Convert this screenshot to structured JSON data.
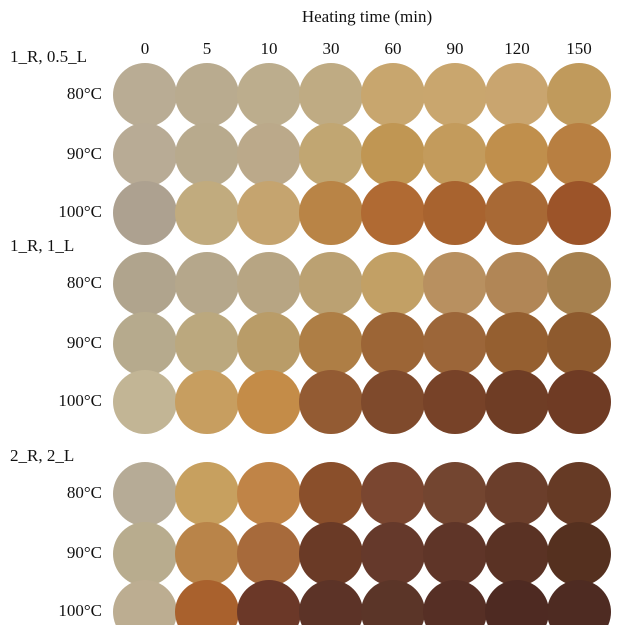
{
  "title": "Heating time (min)",
  "columns": [
    "0",
    "5",
    "10",
    "30",
    "60",
    "90",
    "120",
    "150"
  ],
  "groups": [
    {
      "label": "1_R, 0.5_L",
      "rows": [
        {
          "label": "80°C",
          "colors": [
            "#b9ac94",
            "#b9ab8f",
            "#bcad8d",
            "#bfab83",
            "#c8a66e",
            "#c9a66e",
            "#c9a56f",
            "#c09a5c"
          ]
        },
        {
          "label": "90°C",
          "colors": [
            "#b8ab95",
            "#b8aa8d",
            "#bba98a",
            "#c1a672",
            "#c09653",
            "#c39b5c",
            "#c08f4c",
            "#b87f41"
          ]
        },
        {
          "label": "100°C",
          "colors": [
            "#ada190",
            "#c1ab7e",
            "#c5a46f",
            "#b98446",
            "#b06a33",
            "#a8632f",
            "#a86935",
            "#9c5429"
          ]
        }
      ]
    },
    {
      "label": "1_R, 1_L",
      "rows": [
        {
          "label": "80°C",
          "colors": [
            "#b0a48d",
            "#b5a78b",
            "#b7a583",
            "#bba172",
            "#c2a065",
            "#b89060",
            "#b18656",
            "#a6804e"
          ]
        },
        {
          "label": "90°C",
          "colors": [
            "#b6aa8d",
            "#bba87e",
            "#b99c68",
            "#ae7e45",
            "#9c6536",
            "#9c6639",
            "#955f30",
            "#8e5a2e"
          ]
        },
        {
          "label": "100°C",
          "colors": [
            "#c2b595",
            "#c79e60",
            "#c48c48",
            "#935b33",
            "#7f4a2c",
            "#774228",
            "#6f3d25",
            "#6f3b24"
          ]
        }
      ]
    },
    {
      "label": "2_R, 2_L",
      "rows": [
        {
          "label": "80°C",
          "colors": [
            "#b6ab96",
            "#c7a05f",
            "#c08447",
            "#8a4f2b",
            "#7a4630",
            "#734530",
            "#6b3e2b",
            "#663a25"
          ]
        },
        {
          "label": "90°C",
          "colors": [
            "#b8ac8e",
            "#b98449",
            "#a76a3b",
            "#6a3a26",
            "#65392b",
            "#5f3528",
            "#5a3224",
            "#55301f"
          ]
        },
        {
          "label": "100°C",
          "colors": [
            "#bcad91",
            "#a9612d",
            "#6b3828",
            "#5c3327",
            "#5b3528",
            "#562f25",
            "#4e2a22",
            "#4e2b22"
          ]
        }
      ]
    }
  ]
}
